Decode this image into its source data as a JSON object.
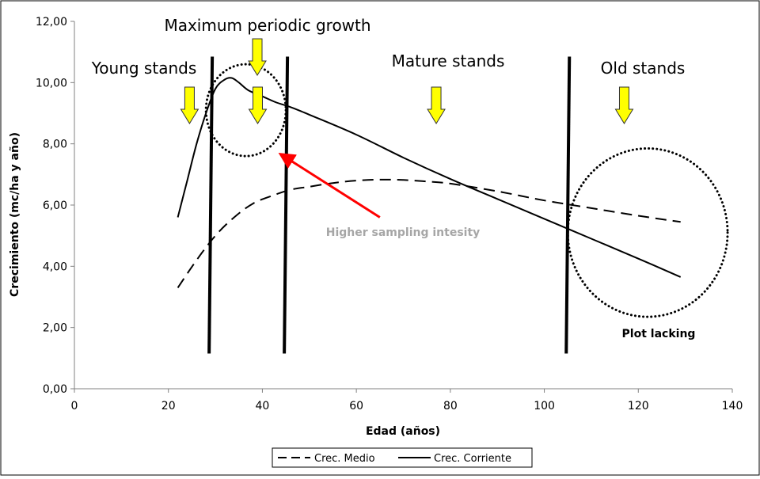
{
  "chart_data": {
    "type": "line",
    "xlabel": "Edad (años)",
    "ylabel": "Crecimiento (mc/ha y año)",
    "xlim": [
      0,
      140
    ],
    "ylim": [
      0,
      12
    ],
    "x_ticks": [
      0,
      20,
      40,
      60,
      80,
      100,
      120,
      140
    ],
    "y_ticks": [
      "0,00",
      "2,00",
      "4,00",
      "6,00",
      "8,00",
      "10,00",
      "12,00"
    ],
    "y_tick_values": [
      0,
      2,
      4,
      6,
      8,
      10,
      12
    ],
    "series": [
      {
        "name": "Crec. Medio",
        "style": "dashed",
        "x": [
          22,
          26,
          30,
          34,
          38,
          42,
          46,
          50,
          55,
          60,
          65,
          70,
          75,
          80,
          90,
          100,
          110,
          120,
          129
        ],
        "values": [
          3.3,
          4.2,
          5.0,
          5.6,
          6.05,
          6.3,
          6.5,
          6.6,
          6.72,
          6.8,
          6.83,
          6.82,
          6.77,
          6.7,
          6.45,
          6.15,
          5.9,
          5.65,
          5.45
        ]
      },
      {
        "name": "Crec. Corriente",
        "style": "solid",
        "x": [
          22,
          24,
          26,
          28,
          30,
          32,
          33.5,
          35,
          37,
          40,
          43,
          46,
          50,
          60,
          70,
          80,
          90,
          100,
          110,
          120,
          129
        ],
        "values": [
          5.6,
          6.8,
          8.0,
          9.0,
          9.8,
          10.1,
          10.15,
          10.0,
          9.75,
          9.55,
          9.35,
          9.2,
          8.95,
          8.3,
          7.55,
          6.85,
          6.2,
          5.55,
          4.9,
          4.25,
          3.65
        ]
      }
    ],
    "stage_dividers_x": [
      29,
      45,
      105
    ],
    "stage_dividers_range": [
      1.15,
      10.85
    ],
    "annotations": {
      "young": "Young stands",
      "max_growth": "Maximum periodic growth",
      "mature": "Mature stands",
      "old": "Old stands",
      "sampling": "Higher sampling intesity",
      "lacking": "Plot lacking"
    },
    "annotation_arrow_x": [
      24.5,
      39,
      77,
      117
    ],
    "highlight_ellipses": [
      {
        "cx": 36.5,
        "cy": 9.1,
        "rx": 8.5,
        "ry": 1.5
      },
      {
        "cx": 122,
        "cy": 5.1,
        "rx": 17,
        "ry": 2.75
      }
    ],
    "sampling_arrow": {
      "from": [
        65,
        5.6
      ],
      "to": [
        44,
        7.65
      ]
    },
    "legend_position": "bottom-center",
    "colors": {
      "arrow_fill": "#ffff00",
      "arrow_stroke": "#333333",
      "pointer": "#ff0000",
      "sampling_text": "#a6a6a6",
      "axis": "#808080",
      "line": "#000000"
    }
  }
}
